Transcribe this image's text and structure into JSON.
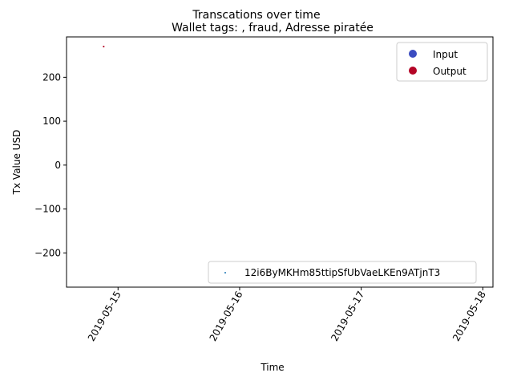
{
  "chart_data": {
    "type": "scatter",
    "suptitle": "Transcations over time",
    "title": "Wallet tags: , fraud, Adresse piratée",
    "xlabel": "Time",
    "ylabel": "Tx Value USD",
    "x_ticks": [
      "2019-05-15",
      "2019-05-16",
      "2019-05-17",
      "2019-05-18"
    ],
    "y_ticks": [
      -200,
      -100,
      0,
      100,
      200
    ],
    "ylim": [
      -278,
      292
    ],
    "xlim": [
      "2019-05-14T13:50",
      "2019-05-18T02:00"
    ],
    "legend_upper": [
      {
        "label": "Input",
        "color": "#3b4cc0"
      },
      {
        "label": "Output",
        "color": "#b40426"
      }
    ],
    "legend_lower": [
      {
        "label": "12i6ByMKHm85ttipSfUbVaeLKEn9ATjnT3",
        "color": "#1f77b4"
      }
    ],
    "points": [
      {
        "x": "2019-05-14T21:10",
        "y": 270,
        "kind": "Output",
        "color": "#b40426"
      }
    ],
    "grid": false
  }
}
